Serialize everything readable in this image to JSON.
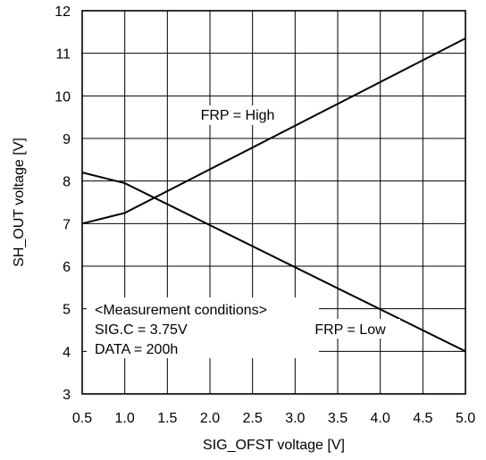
{
  "chart_data": {
    "type": "line",
    "xlabel": "SIG_OFST voltage [V]",
    "ylabel": "SH_OUT voltage [V]",
    "xlim": [
      0.5,
      5.0
    ],
    "ylim": [
      3,
      12
    ],
    "x_ticks": [
      "0.5",
      "1.0",
      "1.5",
      "2.0",
      "2.5",
      "3.0",
      "3.5",
      "4.0",
      "4.5",
      "5.0"
    ],
    "y_ticks": [
      "3",
      "4",
      "5",
      "6",
      "7",
      "8",
      "9",
      "10",
      "11",
      "12"
    ],
    "grid": true,
    "series": [
      {
        "name": "FRP = High",
        "x": [
          0.5,
          1.0,
          5.0
        ],
        "y": [
          7.0,
          7.25,
          11.35
        ]
      },
      {
        "name": "FRP = Low",
        "x": [
          0.5,
          1.0,
          5.0
        ],
        "y": [
          8.2,
          7.95,
          4.0
        ]
      }
    ],
    "annotations": {
      "conditions": [
        "<Measurement conditions>",
        "SIG.C = 3.75V",
        "DATA = 200h"
      ]
    }
  }
}
